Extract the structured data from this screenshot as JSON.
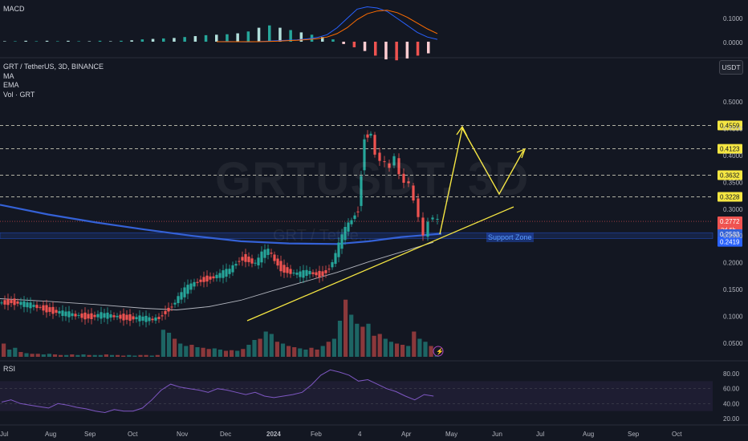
{
  "panes": {
    "macd_title": "MACD",
    "rsi_title": "RSI"
  },
  "legend": {
    "symbol": "GRT / TetherUS, 3D, BINANCE",
    "ma": "MA",
    "ema": "EMA",
    "vol": "Vol · GRT"
  },
  "currency_button": "USDT",
  "watermark": {
    "ticker": "GRTUSDT, 3D",
    "name": "GRT / Tethe..."
  },
  "support_label": "Support Zone",
  "colors": {
    "background": "#131722",
    "up": "#26a69a",
    "down": "#ef5350",
    "ma_line": "#3461d6",
    "ema_line": "#b2b5be",
    "annotation": "#f5e642",
    "rsi": "#7e57c2",
    "macd": "#2962ff",
    "signal": "#ff6d00",
    "support": "#2962ff"
  },
  "chart_data": {
    "type": "candlestick",
    "symbol": "GRT / TetherUS",
    "interval": "3D",
    "exchange": "BINANCE",
    "x_axis_labels": [
      "Jul",
      "Aug",
      "Sep",
      "Oct",
      "Nov",
      "Dec",
      "2024",
      "Feb",
      "4",
      "Apr",
      "May",
      "Jun",
      "Jul",
      "Aug",
      "Sep",
      "Oct"
    ],
    "y_axis_labels": [
      "0.5000",
      "0.4500",
      "0.4000",
      "0.3500",
      "0.3000",
      "0.2500",
      "0.2000",
      "0.1500",
      "0.1000",
      "0.0500"
    ],
    "ylim": [
      0.03,
      0.53
    ],
    "current_price": "0.2772",
    "countdown": "2d 6h",
    "ma_value": "0.2533",
    "ema_value": "0.2419",
    "horizontal_levels": [
      "0.4559",
      "0.4123",
      "0.3632",
      "0.3228"
    ],
    "price_path": [
      [
        0,
        0.125
      ],
      [
        16,
        0.128
      ],
      [
        32,
        0.122
      ],
      [
        48,
        0.118
      ],
      [
        64,
        0.112
      ],
      [
        80,
        0.105
      ],
      [
        96,
        0.102
      ],
      [
        112,
        0.1
      ],
      [
        128,
        0.102
      ],
      [
        144,
        0.1
      ],
      [
        160,
        0.098
      ],
      [
        176,
        0.096
      ],
      [
        192,
        0.094
      ],
      [
        200,
        0.098
      ],
      [
        208,
        0.11
      ],
      [
        216,
        0.12
      ],
      [
        224,
        0.135
      ],
      [
        232,
        0.148
      ],
      [
        240,
        0.158
      ],
      [
        248,
        0.165
      ],
      [
        256,
        0.17
      ],
      [
        264,
        0.172
      ],
      [
        272,
        0.175
      ],
      [
        280,
        0.18
      ],
      [
        288,
        0.185
      ],
      [
        296,
        0.2
      ],
      [
        304,
        0.21
      ],
      [
        312,
        0.205
      ],
      [
        320,
        0.198
      ],
      [
        328,
        0.215
      ],
      [
        336,
        0.222
      ],
      [
        344,
        0.205
      ],
      [
        352,
        0.19
      ],
      [
        360,
        0.185
      ],
      [
        368,
        0.18
      ],
      [
        376,
        0.178
      ],
      [
        384,
        0.182
      ],
      [
        392,
        0.18
      ],
      [
        400,
        0.178
      ],
      [
        408,
        0.185
      ],
      [
        416,
        0.2
      ],
      [
        424,
        0.232
      ],
      [
        432,
        0.262
      ],
      [
        440,
        0.28
      ],
      [
        448,
        0.3
      ],
      [
        456,
        0.435
      ],
      [
        464,
        0.44
      ],
      [
        470,
        0.4
      ],
      [
        476,
        0.395
      ],
      [
        482,
        0.382
      ],
      [
        488,
        0.38
      ],
      [
        494,
        0.4
      ],
      [
        500,
        0.36
      ],
      [
        506,
        0.355
      ],
      [
        512,
        0.345
      ],
      [
        518,
        0.315
      ],
      [
        524,
        0.29
      ],
      [
        530,
        0.245
      ],
      [
        536,
        0.28
      ],
      [
        542,
        0.285
      ],
      [
        548,
        0.277
      ]
    ],
    "ma_path": [
      [
        0,
        0.308
      ],
      [
        60,
        0.29
      ],
      [
        120,
        0.275
      ],
      [
        180,
        0.262
      ],
      [
        240,
        0.25
      ],
      [
        300,
        0.24
      ],
      [
        360,
        0.236
      ],
      [
        420,
        0.235
      ],
      [
        460,
        0.24
      ],
      [
        500,
        0.248
      ],
      [
        550,
        0.254
      ]
    ],
    "ema_path": [
      [
        0,
        0.133
      ],
      [
        60,
        0.128
      ],
      [
        120,
        0.122
      ],
      [
        180,
        0.115
      ],
      [
        220,
        0.112
      ],
      [
        260,
        0.118
      ],
      [
        300,
        0.13
      ],
      [
        340,
        0.148
      ],
      [
        380,
        0.165
      ],
      [
        420,
        0.182
      ],
      [
        460,
        0.202
      ],
      [
        500,
        0.22
      ],
      [
        540,
        0.238
      ]
    ],
    "volume": [
      0.22,
      0.12,
      0.15,
      0.08,
      0.06,
      0.05,
      0.05,
      0.04,
      0.05,
      0.04,
      0.03,
      0.03,
      0.04,
      0.03,
      0.04,
      0.03,
      0.03,
      0.03,
      0.04,
      0.03,
      0.03,
      0.02,
      0.03,
      0.02,
      0.03,
      0.03,
      0.02,
      0.03,
      0.45,
      0.4,
      0.3,
      0.22,
      0.18,
      0.2,
      0.16,
      0.15,
      0.13,
      0.14,
      0.12,
      0.1,
      0.11,
      0.1,
      0.13,
      0.2,
      0.28,
      0.3,
      0.42,
      0.38,
      0.25,
      0.22,
      0.18,
      0.16,
      0.14,
      0.12,
      0.15,
      0.12,
      0.18,
      0.25,
      0.3,
      0.6,
      0.95,
      0.7,
      0.55,
      0.5,
      0.55,
      0.35,
      0.38,
      0.3,
      0.25,
      0.22,
      0.2,
      0.18,
      0.42,
      0.3,
      0.25,
      0.18,
      0.12
    ],
    "rsi_labels": [
      "80.00",
      "60.00",
      "40.00",
      "20.00"
    ],
    "rsi_values": [
      42,
      45,
      40,
      38,
      36,
      34,
      40,
      38,
      35,
      33,
      30,
      28,
      32,
      30,
      30,
      34,
      45,
      58,
      66,
      62,
      60,
      58,
      55,
      60,
      58,
      55,
      52,
      55,
      50,
      48,
      50,
      52,
      55,
      65,
      78,
      85,
      82,
      78,
      70,
      72,
      66,
      60,
      56,
      50,
      45,
      52,
      50
    ],
    "macd_labels": [
      "0.1000",
      "0.0000"
    ],
    "macd_line": [
      0.0,
      0.001,
      0.0,
      -0.001,
      0.0,
      0.002,
      0.004,
      0.006,
      0.008,
      0.012,
      0.018,
      0.03,
      0.06,
      0.1,
      0.14,
      0.15,
      0.145,
      0.13,
      0.1,
      0.07,
      0.04,
      0.02,
      0.01
    ],
    "signal_line": [
      0.0,
      0.0,
      0.0,
      0.0,
      0.0,
      0.001,
      0.002,
      0.004,
      0.006,
      0.009,
      0.013,
      0.02,
      0.035,
      0.06,
      0.095,
      0.12,
      0.132,
      0.135,
      0.125,
      0.105,
      0.08,
      0.055,
      0.035
    ],
    "macd_hist": [
      0.001,
      0.001,
      0.002,
      0.001,
      0.002,
      0.001,
      0.002,
      0.001,
      0.001,
      0.002,
      0.001,
      0.002,
      0.003,
      0.005,
      0.006,
      0.007,
      0.008,
      0.01,
      0.012,
      0.014,
      0.015,
      0.016,
      0.018,
      0.022,
      0.03,
      0.035,
      0.03,
      0.025,
      0.02,
      0.015,
      0.01,
      0.005,
      -0.005,
      -0.012,
      -0.02,
      -0.03,
      -0.038,
      -0.04,
      -0.036,
      -0.03,
      -0.025
    ]
  }
}
